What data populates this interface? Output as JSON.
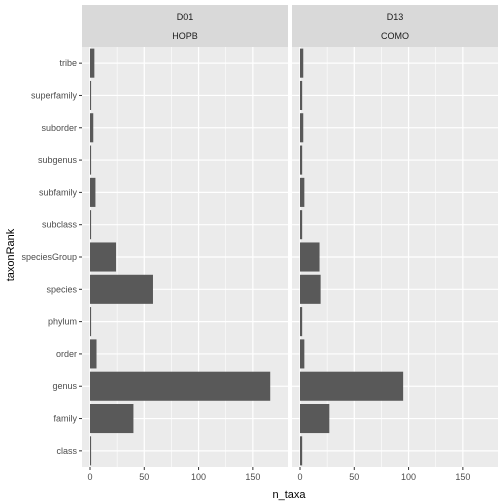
{
  "chart_data": {
    "type": "bar",
    "orientation": "horizontal",
    "xlabel": "n_taxa",
    "ylabel": "taxonRank",
    "xlim": [
      0,
      175
    ],
    "x_ticks": [
      0,
      50,
      100,
      150
    ],
    "grid": true,
    "categories": [
      "class",
      "family",
      "genus",
      "order",
      "phylum",
      "species",
      "speciesGroup",
      "subclass",
      "subfamily",
      "subgenus",
      "suborder",
      "superfamily",
      "tribe"
    ],
    "panels": [
      {
        "strip_top": "D01",
        "strip_bottom": "HOPB",
        "values": [
          1,
          40,
          166,
          6,
          1,
          58,
          24,
          1,
          5,
          1,
          3,
          1,
          4
        ]
      },
      {
        "strip_top": "D13",
        "strip_bottom": "COMO",
        "values": [
          2,
          27,
          95,
          4,
          2,
          19,
          18,
          2,
          4,
          2,
          3,
          2,
          3
        ]
      }
    ],
    "colors": {
      "bar": "#595959",
      "panel_background": "#ebebeb",
      "strip_background": "#d9d9d9",
      "grid": "#ffffff"
    }
  }
}
